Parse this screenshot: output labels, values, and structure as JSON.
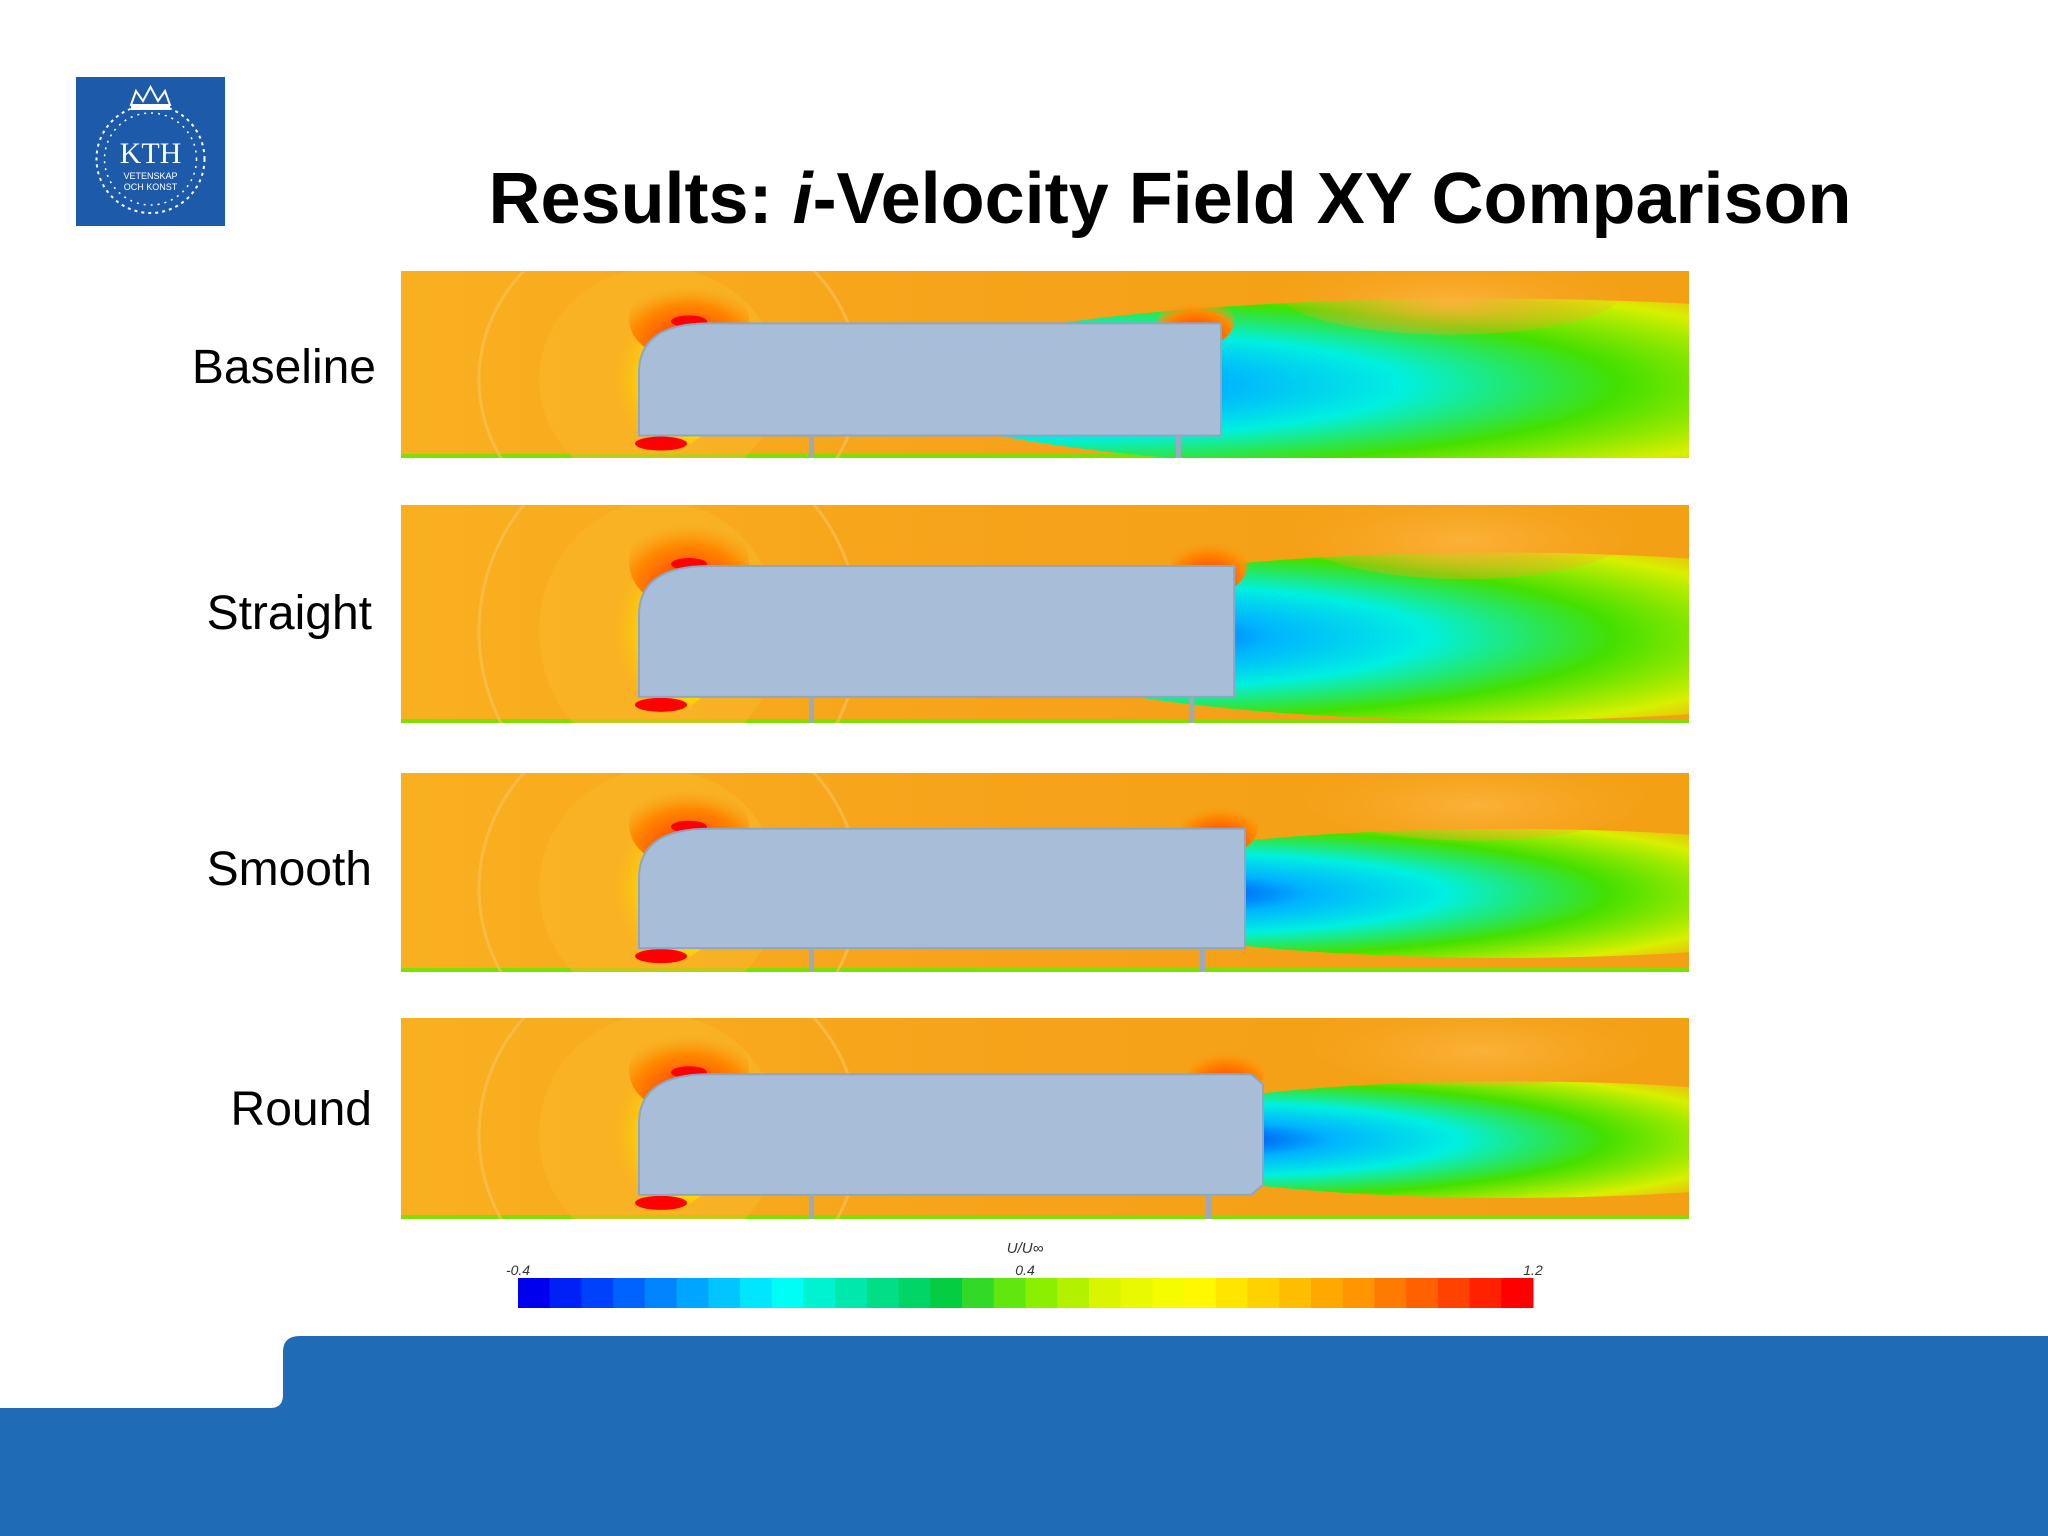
{
  "title": {
    "prefix": "Results: ",
    "italic": "i",
    "rest": "-Velocity Field XY Comparison"
  },
  "logo": {
    "text": "KTH",
    "line1": "VETENSKAP",
    "line2": "OCH KONST",
    "color": "#1d5aa9",
    "icon": "kth-crown-seal-icon"
  },
  "rows": [
    {
      "label": "Baseline",
      "wake_scale": 1.0
    },
    {
      "label": "Straight",
      "wake_scale": 0.78
    },
    {
      "label": "Smooth",
      "wake_scale": 0.6
    },
    {
      "label": "Round",
      "wake_scale": 0.5
    }
  ],
  "colorbar": {
    "title": "U/U∞",
    "min_label": "-0.4",
    "mid_label": "0.4",
    "max_label": "1.2",
    "stops": [
      "#0000ee",
      "#0055ff",
      "#00aaff",
      "#00ffff",
      "#00e6a0",
      "#00cc44",
      "#77ee00",
      "#ddf500",
      "#ffff00",
      "#ffcc00",
      "#ff9900",
      "#ff5500",
      "#ff0000"
    ]
  },
  "colors": {
    "field": "#f7a21a",
    "body": "#a8bdd8",
    "footer": "#1f6bb5"
  }
}
